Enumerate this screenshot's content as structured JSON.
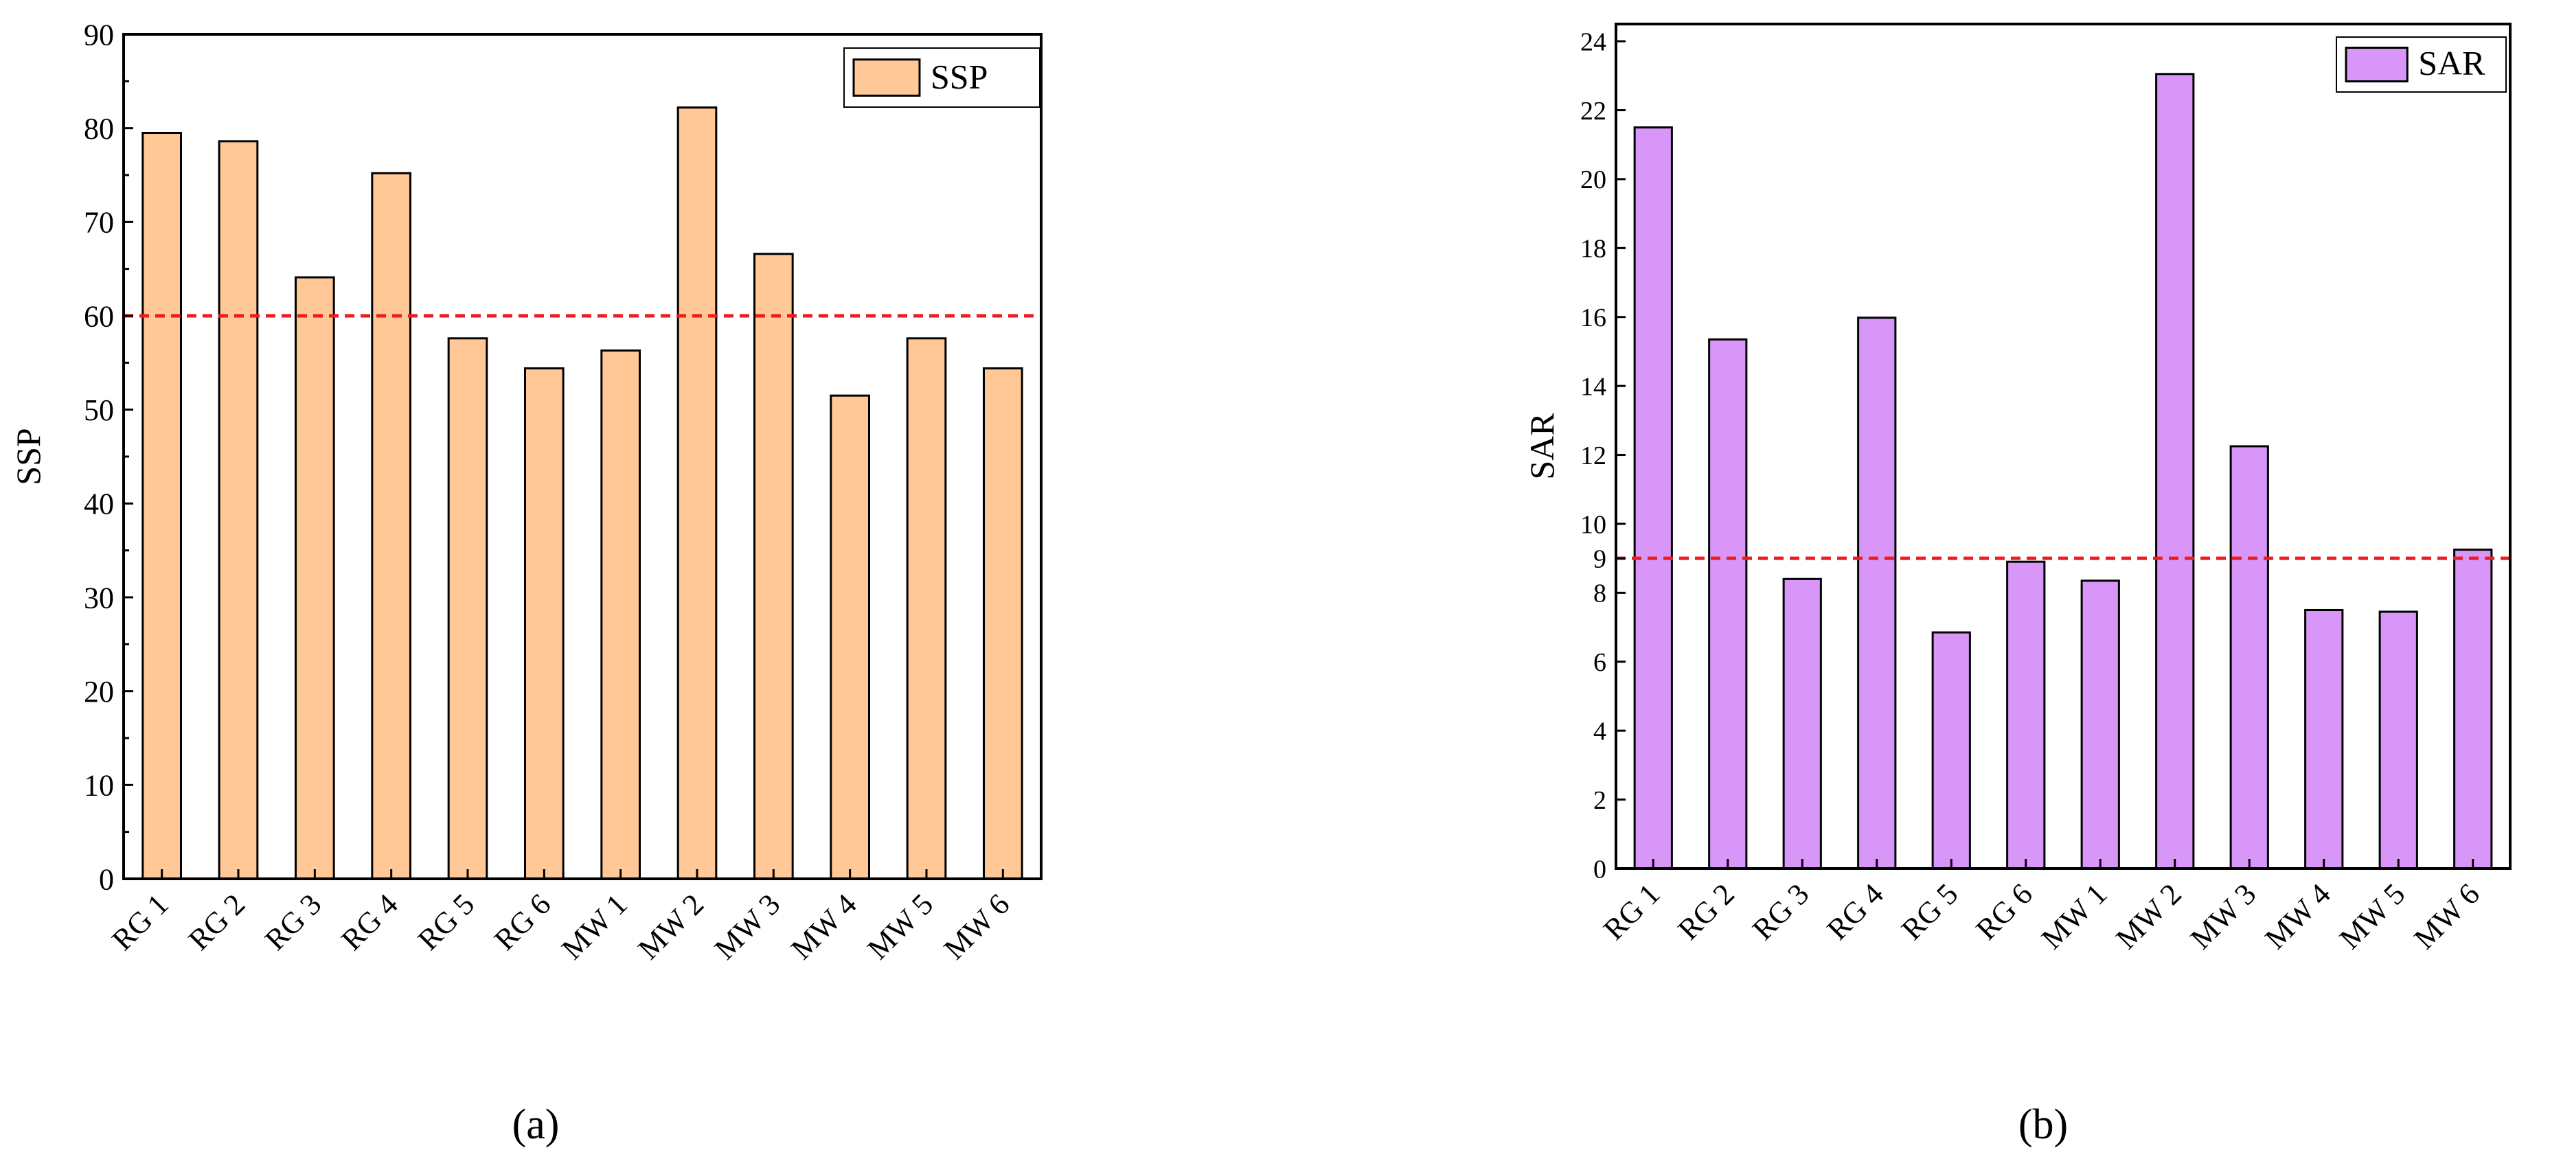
{
  "chart_data": [
    {
      "type": "bar",
      "panel_label": "(a)",
      "categories": [
        "RG 1",
        "RG 2",
        "RG 3",
        "RG 4",
        "RG 5",
        "RG 6",
        "MW 1",
        "MW 2",
        "MW 3",
        "MW 4",
        "MW 5",
        "MW 6"
      ],
      "series": [
        {
          "name": "SSP",
          "values": [
            79.5,
            78.6,
            64.1,
            75.2,
            57.6,
            54.4,
            56.3,
            82.2,
            66.6,
            51.5,
            57.6,
            54.4
          ]
        }
      ],
      "title": "",
      "xlabel": "",
      "ylabel": "SSP",
      "ylim": [
        0,
        90
      ],
      "yticks": [
        0,
        10,
        20,
        30,
        40,
        50,
        60,
        70,
        80,
        90
      ],
      "reference_line": 60,
      "legend_position": "top-right",
      "colors": {
        "bar": "#FFC896",
        "reference": "#EE1C1C"
      }
    },
    {
      "type": "bar",
      "panel_label": "(b)",
      "categories": [
        "RG 1",
        "RG 2",
        "RG 3",
        "RG 4",
        "RG 5",
        "RG 6",
        "MW 1",
        "MW 2",
        "MW 3",
        "MW 4",
        "MW 5",
        "MW 6"
      ],
      "series": [
        {
          "name": "SAR",
          "values": [
            21.5,
            15.35,
            8.4,
            15.98,
            6.85,
            8.9,
            8.35,
            23.05,
            12.25,
            7.5,
            7.45,
            9.25
          ]
        }
      ],
      "title": "",
      "xlabel": "",
      "ylabel": "SAR",
      "ylim": [
        0,
        24.5
      ],
      "yticks": [
        0,
        2,
        4,
        6,
        8,
        9,
        10,
        12,
        14,
        16,
        18,
        20,
        22,
        24
      ],
      "reference_line": 9,
      "legend_position": "top-right",
      "colors": {
        "bar": "#D896F8",
        "reference": "#EE1C1C"
      }
    }
  ]
}
